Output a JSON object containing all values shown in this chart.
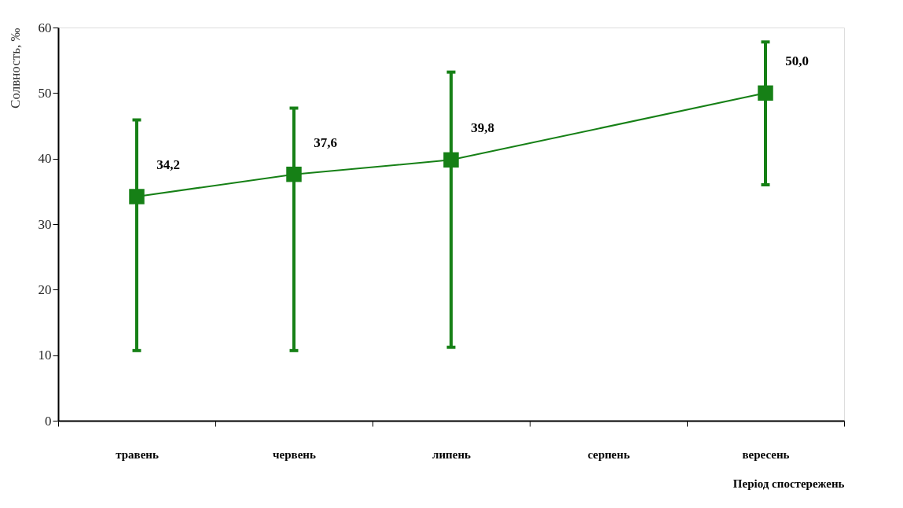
{
  "chart_data": {
    "type": "line",
    "xlabel": "Період спостережень",
    "ylabel": "Солвность, ‰",
    "categories": [
      "травень",
      "червень",
      "липень",
      "серпень",
      "вересень"
    ],
    "values": [
      34.2,
      37.6,
      39.8,
      null,
      50.0
    ],
    "color": "#168016",
    "errors": [
      [
        10.7,
        45.9
      ],
      [
        10.7,
        47.7
      ],
      [
        11.2,
        53.2
      ],
      null,
      [
        36.0,
        57.8
      ]
    ],
    "value_labels": [
      "34,2",
      "37,6",
      "39,8",
      null,
      "50,0"
    ],
    "ylim": [
      0,
      60
    ],
    "yticks": [
      0,
      10,
      20,
      30,
      40,
      50,
      60
    ],
    "marker": "square",
    "line_style": "solid",
    "grid": false
  }
}
